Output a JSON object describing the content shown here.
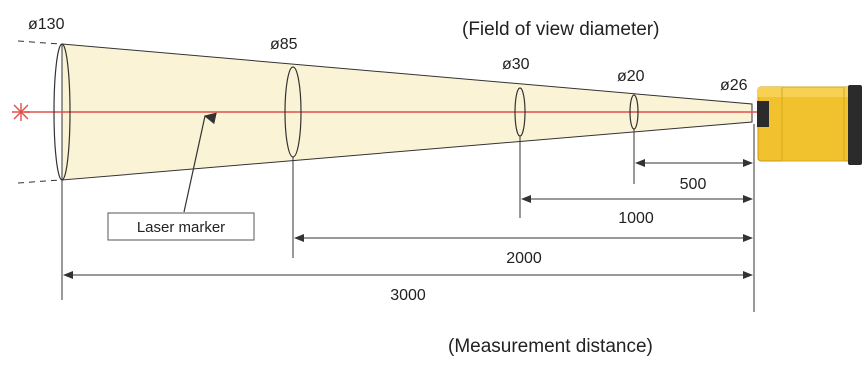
{
  "header": {
    "field_of_view_label": "(Field of view diameter)"
  },
  "footer": {
    "measurement_distance_label": "(Measurement distance)"
  },
  "diameters": [
    {
      "label": "ø130"
    },
    {
      "label": "ø85"
    },
    {
      "label": "ø30"
    },
    {
      "label": "ø20"
    },
    {
      "label": "ø26"
    }
  ],
  "distances": [
    {
      "label": "500"
    },
    {
      "label": "1000"
    },
    {
      "label": "2000"
    },
    {
      "label": "3000"
    }
  ],
  "callout": {
    "label": "Laser marker"
  },
  "colors": {
    "cone_fill": "#fbf3d6",
    "laser": "#e0504a",
    "sensor_body": "#f2c12e",
    "sensor_dark": "#2b2b2b",
    "line": "#333333"
  }
}
